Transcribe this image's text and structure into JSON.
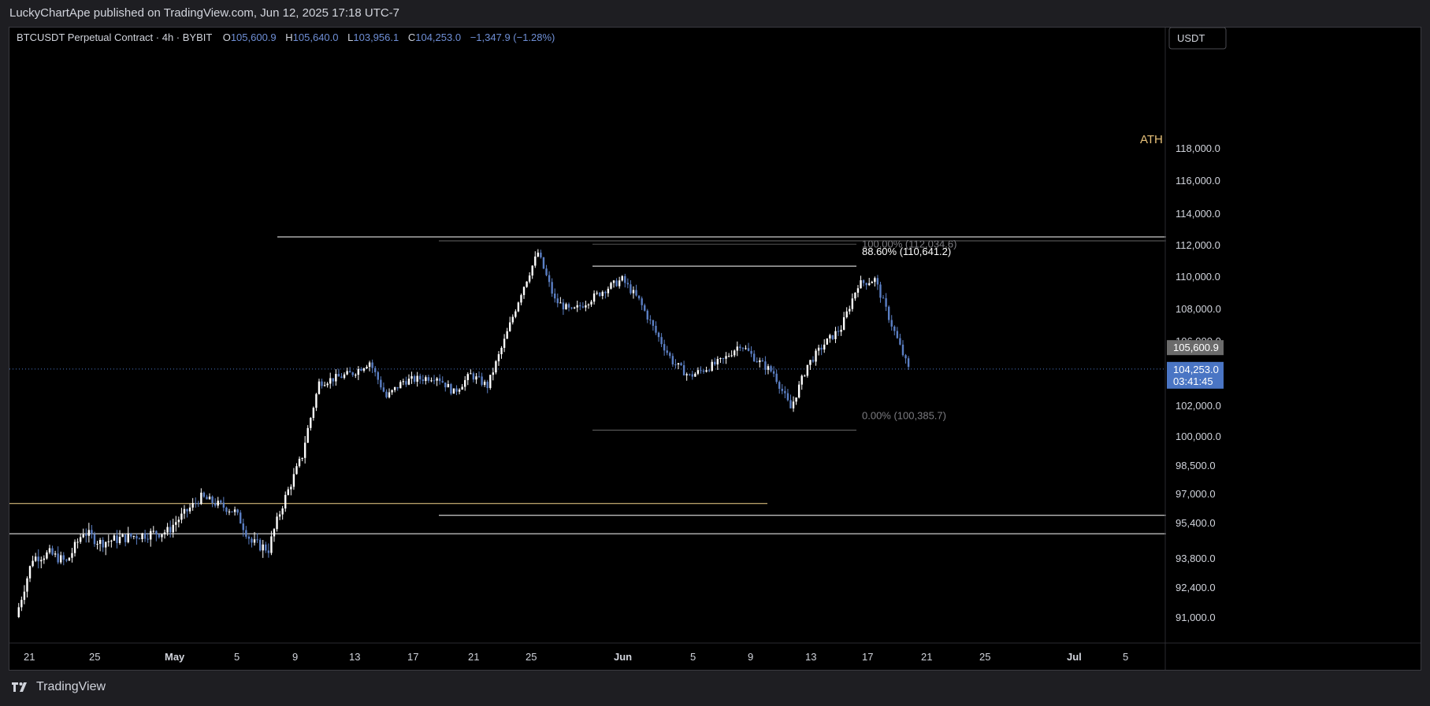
{
  "header": {
    "published": "LuckyChartApe published on TradingView.com, Jun 12, 2025 17:18 UTC-7"
  },
  "legend": {
    "symbol": "BTCUSDT Perpetual Contract · 4h · BYBIT",
    "o_label": "O",
    "o": "105,600.9",
    "h_label": "H",
    "h": "105,640.0",
    "l_label": "L",
    "l": "103,956.1",
    "c_label": "C",
    "c": "104,253.0",
    "change": "−1,347.9 (−1.28%)"
  },
  "price_axis": {
    "currency": "USDT",
    "ticks": [
      "118,000.0",
      "116,000.0",
      "114,000.0",
      "112,000.0",
      "110,000.0",
      "108,000.0",
      "106,000.0",
      "102,000.0",
      "100,000.0",
      "98,500.0",
      "97,000.0",
      "95,400.0",
      "93,800.0",
      "92,400.0",
      "91,000.0"
    ],
    "last_price": "104,253.0",
    "countdown": "03:41:45",
    "prev_close": "105,600.9"
  },
  "time_axis": [
    "21",
    "25",
    "May",
    "5",
    "9",
    "13",
    "17",
    "21",
    "25",
    "Jun",
    "5",
    "9",
    "13",
    "17",
    "21",
    "25",
    "Jul",
    "5"
  ],
  "fib": {
    "top_label": "100.00% (112,034.6)",
    "mid_label": "88.60% (110,641.2)",
    "bottom_label": "0.00% (100,385.7)"
  },
  "annotations": {
    "ath": "ATH"
  },
  "footer": {
    "brand": "TradingView"
  },
  "colors": {
    "background": "#000000",
    "candle": "#5b7fc4",
    "ath": "#e8c27a",
    "support": "#f2d38a",
    "line": "#ffffff",
    "last_price": "#4a75c4",
    "prev_close": "#6b6b6b"
  },
  "chart_data": {
    "type": "candlestick",
    "title": "BTCUSDT Perpetual Contract · 4h · BYBIT",
    "interval": "4h",
    "ylim": [
      89800,
      119000
    ],
    "horizontal_levels": [
      {
        "price": 112500,
        "color": "white",
        "note": "ATH"
      },
      {
        "price": 112034.6,
        "label": "100.00%"
      },
      {
        "price": 110641.2,
        "label": "88.60%"
      },
      {
        "price": 100385.7,
        "label": "0.00%"
      },
      {
        "price": 96450,
        "color": "yellow"
      },
      {
        "price": 95800,
        "color": "white"
      },
      {
        "price": 94900,
        "color": "white"
      }
    ],
    "close_path": [
      [
        "2025-04-21",
        91000
      ],
      [
        "2025-04-22",
        93800
      ],
      [
        "2025-04-23",
        94000
      ],
      [
        "2025-04-24",
        93600
      ],
      [
        "2025-04-25",
        95000
      ],
      [
        "2025-04-26",
        94500
      ],
      [
        "2025-04-28",
        94800
      ],
      [
        "2025-04-30",
        95000
      ],
      [
        "2025-05-02",
        96800
      ],
      [
        "2025-05-04",
        96000
      ],
      [
        "2025-05-05",
        94500
      ],
      [
        "2025-05-06",
        94200
      ],
      [
        "2025-05-07",
        96800
      ],
      [
        "2025-05-08",
        99000
      ],
      [
        "2025-05-09",
        103400
      ],
      [
        "2025-05-11",
        104000
      ],
      [
        "2025-05-12",
        104700
      ],
      [
        "2025-05-13",
        102500
      ],
      [
        "2025-05-14",
        103500
      ],
      [
        "2025-05-16",
        103800
      ],
      [
        "2025-05-17",
        102800
      ],
      [
        "2025-05-18",
        103900
      ],
      [
        "2025-05-19",
        103200
      ],
      [
        "2025-05-20",
        106000
      ],
      [
        "2025-05-21",
        109000
      ],
      [
        "2025-05-22",
        111500
      ],
      [
        "2025-05-23",
        108500
      ],
      [
        "2025-05-24",
        107800
      ],
      [
        "2025-05-26",
        109200
      ],
      [
        "2025-05-27",
        109800
      ],
      [
        "2025-05-28",
        108500
      ],
      [
        "2025-05-29",
        106500
      ],
      [
        "2025-05-30",
        104700
      ],
      [
        "2025-05-31",
        103800
      ],
      [
        "2025-06-02",
        104800
      ],
      [
        "2025-06-03",
        105800
      ],
      [
        "2025-06-04",
        104800
      ],
      [
        "2025-06-05",
        104000
      ],
      [
        "2025-06-06",
        101800
      ],
      [
        "2025-06-07",
        104500
      ],
      [
        "2025-06-08",
        105800
      ],
      [
        "2025-06-09",
        106800
      ],
      [
        "2025-06-10",
        109500
      ],
      [
        "2025-06-11",
        109800
      ],
      [
        "2025-06-12",
        107000
      ],
      [
        "2025-06-13",
        104253
      ]
    ]
  }
}
